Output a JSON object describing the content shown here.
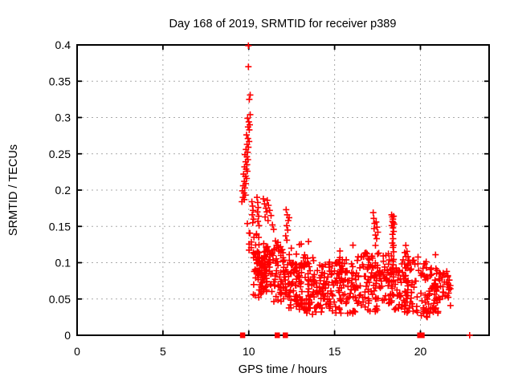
{
  "chart_data": {
    "type": "scatter",
    "title": "Day 168 of 2019, SRMTID for receiver p389",
    "xlabel": "GPS time / hours",
    "ylabel": "SRMTID / TECUs",
    "series_name": "SRMTID",
    "xlim": [
      0,
      24
    ],
    "ylim": [
      0,
      0.4
    ],
    "x_ticks": [
      0,
      5,
      10,
      15,
      20
    ],
    "x_tick_labels": [
      "0",
      "5",
      "10",
      "15",
      "20"
    ],
    "y_ticks": [
      0,
      0.05,
      0.1,
      0.15,
      0.2,
      0.25,
      0.3,
      0.35,
      0.4
    ],
    "y_tick_labels": [
      "0",
      "0.05",
      "0.1",
      "0.15",
      "0.2",
      "0.25",
      "0.3",
      "0.35",
      "0.4"
    ],
    "grid": true,
    "legend": "none",
    "marker": "plus",
    "marker_color": "#ff0000",
    "grid_color": "#aaaaaa",
    "border_color": "#000000",
    "seed": 7,
    "zero_square_markers_x": [
      9.63,
      11.65,
      12.12,
      19.95,
      20.08
    ],
    "zero_plus_markers_x": [
      22.87
    ],
    "feature_points": [
      [
        9.98,
        0.4
      ],
      [
        9.98,
        0.37
      ],
      [
        10.08,
        0.331
      ],
      [
        10.03,
        0.325
      ],
      [
        10.08,
        0.304
      ],
      [
        9.93,
        0.299
      ],
      [
        10.0,
        0.294
      ],
      [
        10.06,
        0.29
      ],
      [
        9.96,
        0.287
      ],
      [
        10.03,
        0.283
      ],
      [
        9.87,
        0.276
      ],
      [
        9.95,
        0.271
      ],
      [
        10.02,
        0.267
      ],
      [
        9.9,
        0.263
      ],
      [
        9.98,
        0.259
      ],
      [
        9.84,
        0.256
      ],
      [
        9.93,
        0.252
      ],
      [
        9.78,
        0.249
      ],
      [
        9.89,
        0.246
      ],
      [
        9.95,
        0.242
      ],
      [
        9.82,
        0.239
      ],
      [
        9.9,
        0.235
      ],
      [
        9.75,
        0.232
      ],
      [
        9.85,
        0.229
      ],
      [
        9.92,
        0.226
      ],
      [
        9.7,
        0.222
      ],
      [
        9.8,
        0.219
      ],
      [
        9.88,
        0.216
      ],
      [
        9.74,
        0.212
      ],
      [
        9.83,
        0.209
      ],
      [
        9.67,
        0.206
      ],
      [
        9.77,
        0.203
      ],
      [
        9.63,
        0.199
      ],
      [
        9.72,
        0.196
      ],
      [
        9.8,
        0.193
      ],
      [
        9.66,
        0.19
      ],
      [
        9.74,
        0.187
      ],
      [
        9.6,
        0.184
      ],
      [
        10.18,
        0.184
      ],
      [
        10.22,
        0.178
      ],
      [
        10.25,
        0.172
      ],
      [
        10.2,
        0.166
      ],
      [
        10.28,
        0.16
      ],
      [
        10.23,
        0.155
      ],
      [
        10.48,
        0.19
      ],
      [
        10.52,
        0.183
      ],
      [
        10.55,
        0.176
      ],
      [
        10.5,
        0.17
      ],
      [
        10.58,
        0.164
      ],
      [
        10.53,
        0.157
      ],
      [
        10.6,
        0.151
      ],
      [
        10.85,
        0.188
      ],
      [
        10.92,
        0.181
      ],
      [
        11.0,
        0.175
      ],
      [
        11.08,
        0.186
      ],
      [
        11.15,
        0.179
      ],
      [
        11.05,
        0.17
      ],
      [
        11.22,
        0.172
      ],
      [
        11.3,
        0.165
      ],
      [
        10.95,
        0.163
      ],
      [
        11.12,
        0.158
      ],
      [
        11.38,
        0.152
      ],
      [
        11.45,
        0.146
      ],
      [
        12.18,
        0.173
      ],
      [
        12.24,
        0.166
      ],
      [
        12.3,
        0.158
      ],
      [
        12.21,
        0.151
      ],
      [
        12.27,
        0.145
      ],
      [
        12.15,
        0.137
      ],
      [
        12.22,
        0.131
      ],
      [
        12.35,
        0.162
      ],
      [
        11.55,
        0.13
      ],
      [
        11.62,
        0.124
      ],
      [
        11.7,
        0.128
      ],
      [
        11.85,
        0.122
      ],
      [
        11.95,
        0.118
      ],
      [
        11.5,
        0.119
      ],
      [
        11.75,
        0.116
      ],
      [
        17.25,
        0.169
      ],
      [
        17.28,
        0.161
      ],
      [
        17.33,
        0.154
      ],
      [
        17.3,
        0.147
      ],
      [
        17.42,
        0.156
      ],
      [
        17.47,
        0.149
      ],
      [
        17.52,
        0.142
      ],
      [
        17.38,
        0.138
      ],
      [
        17.45,
        0.133
      ],
      [
        18.32,
        0.166
      ],
      [
        18.36,
        0.163
      ],
      [
        18.4,
        0.16
      ],
      [
        18.44,
        0.164
      ],
      [
        18.37,
        0.157
      ],
      [
        18.42,
        0.155
      ],
      [
        18.33,
        0.151
      ],
      [
        18.47,
        0.153
      ],
      [
        18.4,
        0.148
      ],
      [
        18.44,
        0.143
      ],
      [
        18.37,
        0.139
      ],
      [
        18.41,
        0.133
      ],
      [
        18.36,
        0.127
      ],
      [
        18.4,
        0.121
      ],
      [
        18.44,
        0.115
      ]
    ],
    "band_segments": [
      {
        "x0": 9.95,
        "x1": 11.25,
        "dx": 0.07,
        "kmin": 1,
        "kmax": 3,
        "floor0": 0.105,
        "floor1": 0.082,
        "top0": 0.155,
        "top1": 0.118,
        "streak_p": 0,
        "streak_top": 0
      },
      {
        "x0": 10.3,
        "x1": 12.05,
        "dx": 0.06,
        "kmin": 2,
        "kmax": 4,
        "floor0": 0.054,
        "floor1": 0.042,
        "top0": 0.112,
        "top1": 0.124,
        "streak_p": 0.05,
        "streak_top": 0.128
      },
      {
        "x0": 10.55,
        "x1": 11.05,
        "dx": 0.05,
        "kmin": 2,
        "kmax": 4,
        "floor0": 0.058,
        "floor1": 0.058,
        "top0": 0.102,
        "top1": 0.102,
        "streak_p": 0,
        "streak_top": 0
      },
      {
        "x0": 12.05,
        "x1": 13.0,
        "dx": 0.06,
        "kmin": 2,
        "kmax": 5,
        "floor0": 0.038,
        "floor1": 0.034,
        "top0": 0.105,
        "top1": 0.1,
        "streak_p": 0.12,
        "streak_top": 0.126
      },
      {
        "x0": 13.0,
        "x1": 14.2,
        "dx": 0.06,
        "kmin": 2,
        "kmax": 5,
        "floor0": 0.03,
        "floor1": 0.028,
        "top0": 0.112,
        "top1": 0.104,
        "streak_p": 0.13,
        "streak_top": 0.133
      },
      {
        "x0": 14.2,
        "x1": 15.3,
        "dx": 0.06,
        "kmin": 2,
        "kmax": 5,
        "floor0": 0.027,
        "floor1": 0.029,
        "top0": 0.1,
        "top1": 0.102,
        "streak_p": 0.1,
        "streak_top": 0.121
      },
      {
        "x0": 15.3,
        "x1": 16.4,
        "dx": 0.06,
        "kmin": 2,
        "kmax": 5,
        "floor0": 0.029,
        "floor1": 0.028,
        "top0": 0.106,
        "top1": 0.108,
        "streak_p": 0.11,
        "streak_top": 0.127
      },
      {
        "x0": 16.4,
        "x1": 17.2,
        "dx": 0.06,
        "kmin": 2,
        "kmax": 5,
        "floor0": 0.028,
        "floor1": 0.03,
        "top0": 0.112,
        "top1": 0.118,
        "streak_p": 0.13,
        "streak_top": 0.136
      },
      {
        "x0": 17.2,
        "x1": 18.25,
        "dx": 0.06,
        "kmin": 2,
        "kmax": 5,
        "floor0": 0.031,
        "floor1": 0.033,
        "top0": 0.115,
        "top1": 0.112,
        "streak_p": 0.1,
        "streak_top": 0.13
      },
      {
        "x0": 18.25,
        "x1": 19.88,
        "dx": 0.06,
        "kmin": 2,
        "kmax": 5,
        "floor0": 0.033,
        "floor1": 0.03,
        "top0": 0.112,
        "top1": 0.108,
        "streak_p": 0.1,
        "streak_top": 0.124
      },
      {
        "x0": 20.05,
        "x1": 21.1,
        "dx": 0.06,
        "kmin": 2,
        "kmax": 5,
        "floor0": 0.024,
        "floor1": 0.026,
        "top0": 0.1,
        "top1": 0.096,
        "streak_p": 0.08,
        "streak_top": 0.115
      },
      {
        "x0": 21.1,
        "x1": 21.78,
        "dx": 0.06,
        "kmin": 1,
        "kmax": 4,
        "floor0": 0.032,
        "floor1": 0.036,
        "top0": 0.095,
        "top1": 0.088,
        "streak_p": 0.05,
        "streak_top": 0.1
      }
    ]
  }
}
